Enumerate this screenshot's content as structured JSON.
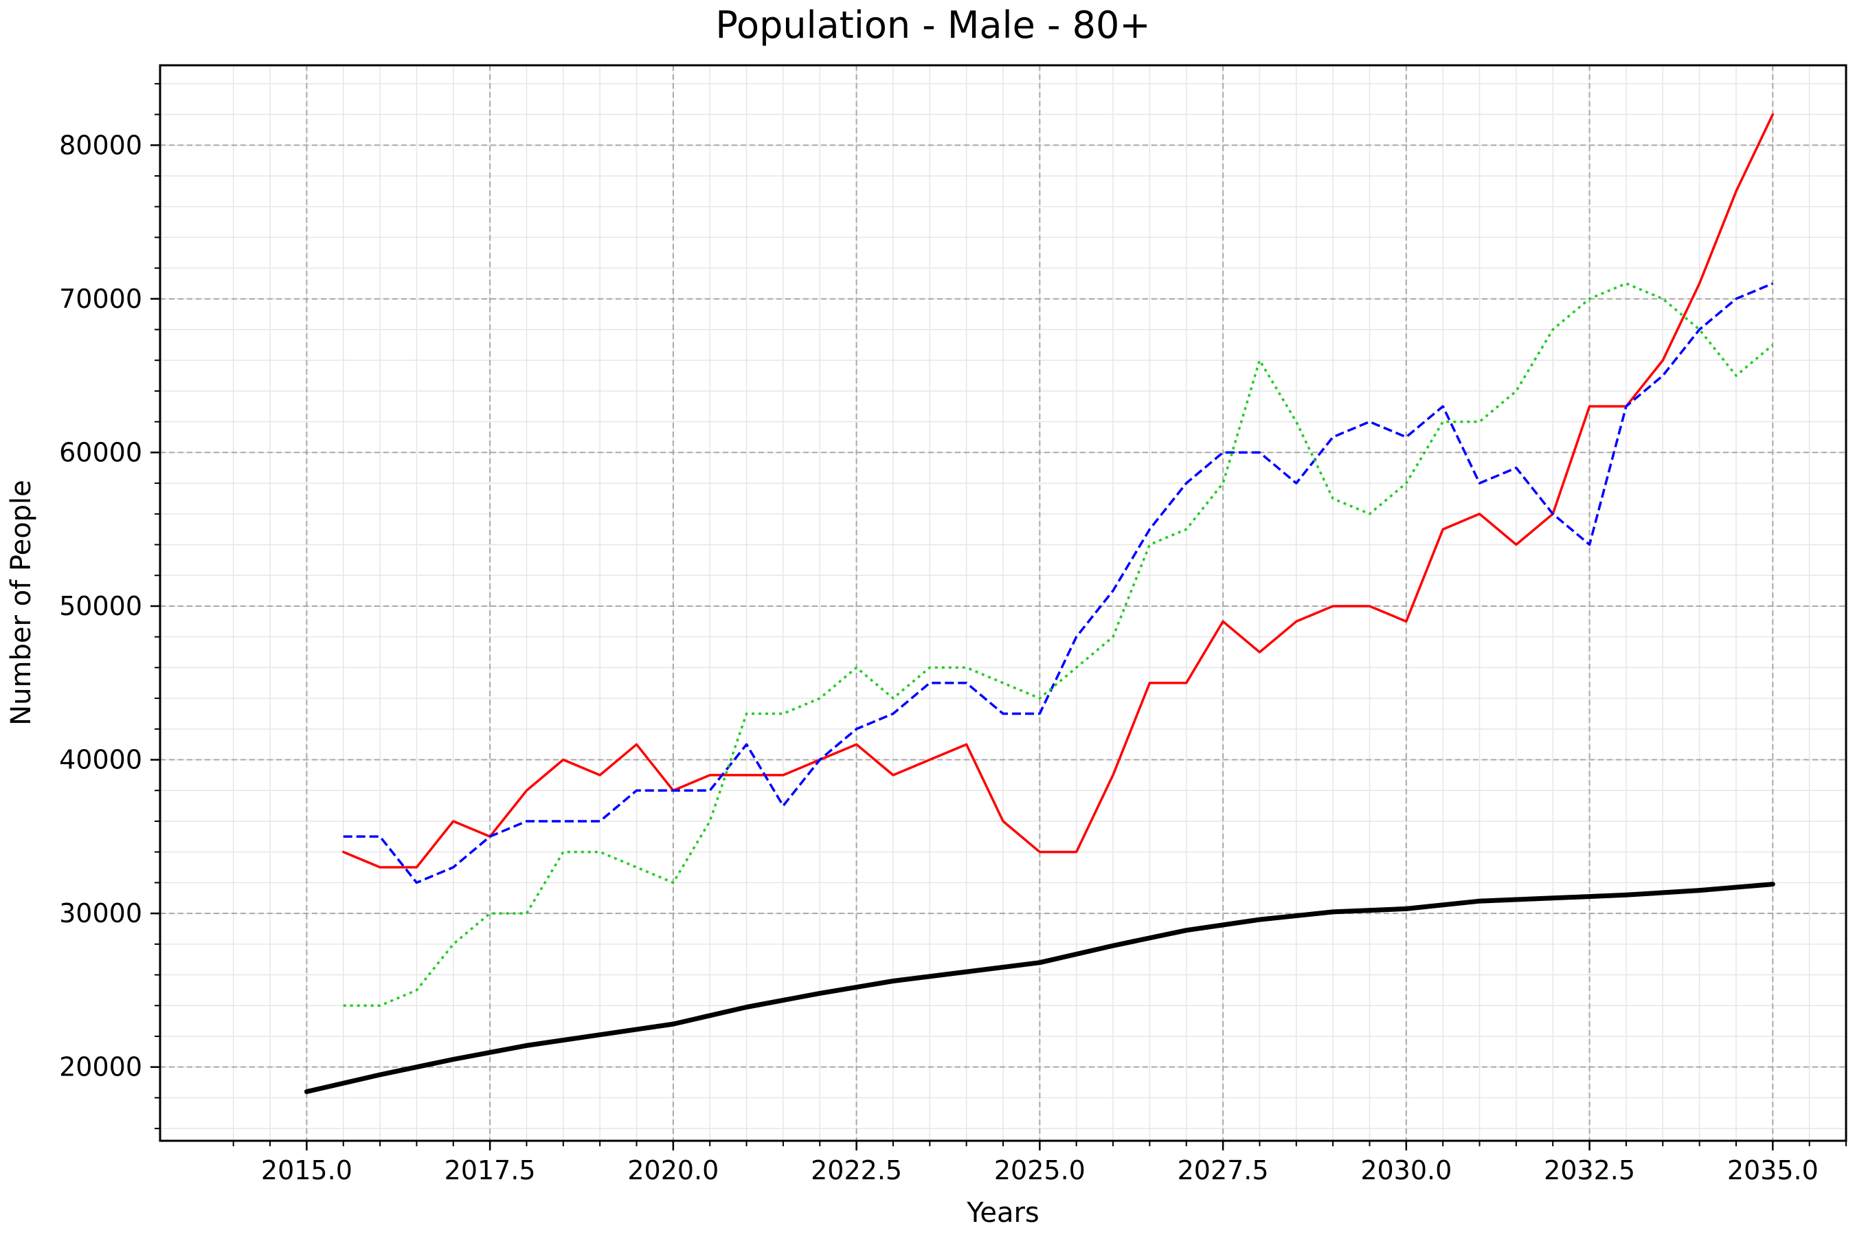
{
  "chart_data": {
    "type": "line",
    "title": "Population - Male - 80+",
    "xlabel": "Years",
    "ylabel": "Number of People",
    "xlim": [
      2013.0,
      2036.0
    ],
    "ylim": [
      15200,
      85200
    ],
    "grid": true,
    "legend": "none",
    "x_ticks": [
      2015.0,
      2017.5,
      2020.0,
      2022.5,
      2025.0,
      2027.5,
      2030.0,
      2032.5,
      2035.0
    ],
    "x_tick_labels": [
      "2015.0",
      "2017.5",
      "2020.0",
      "2022.5",
      "2025.0",
      "2027.5",
      "2030.0",
      "2032.5",
      "2035.0"
    ],
    "y_ticks": [
      20000,
      30000,
      40000,
      50000,
      60000,
      70000,
      80000
    ],
    "y_tick_labels": [
      "20000",
      "30000",
      "40000",
      "50000",
      "60000",
      "70000",
      "80000"
    ],
    "series": [
      {
        "style": "solid-thick",
        "color": "#000000",
        "x": [
          2015,
          2016,
          2017,
          2018,
          2019,
          2020,
          2021,
          2022,
          2023,
          2024,
          2025,
          2026,
          2027,
          2028,
          2029,
          2030,
          2031,
          2032,
          2033,
          2034,
          2035
        ],
        "values": [
          18400,
          19500,
          20500,
          21400,
          22100,
          22800,
          23900,
          24800,
          25600,
          26200,
          26800,
          27900,
          28900,
          29600,
          30100,
          30300,
          30800,
          31000,
          31200,
          31500,
          31900
        ]
      },
      {
        "style": "solid",
        "color": "#ff0000",
        "x": [
          2015.5,
          2016,
          2016.5,
          2017,
          2017.5,
          2018,
          2018.5,
          2019,
          2019.5,
          2020,
          2020.5,
          2021,
          2021.5,
          2022,
          2022.5,
          2023,
          2023.5,
          2024,
          2024.5,
          2025,
          2025.5,
          2026,
          2026.5,
          2027,
          2027.5,
          2028,
          2028.5,
          2029,
          2029.5,
          2030,
          2030.5,
          2031,
          2031.5,
          2032,
          2032.5,
          2033,
          2033.5,
          2034,
          2034.5,
          2035
        ],
        "values": [
          34000,
          33000,
          33000,
          36000,
          35000,
          38000,
          40000,
          39000,
          41000,
          38000,
          39000,
          39000,
          39000,
          40000,
          41000,
          39000,
          40000,
          41000,
          36000,
          34000,
          34000,
          39000,
          45000,
          45000,
          49000,
          47000,
          49000,
          50000,
          50000,
          49000,
          55000,
          56000,
          54000,
          56000,
          63000,
          63000,
          66000,
          71000,
          77000,
          82000
        ]
      },
      {
        "style": "dashed",
        "color": "#0000ff",
        "x": [
          2015.5,
          2016,
          2016.5,
          2017,
          2017.5,
          2018,
          2018.5,
          2019,
          2019.5,
          2020,
          2020.5,
          2021,
          2021.5,
          2022,
          2022.5,
          2023,
          2023.5,
          2024,
          2024.5,
          2025,
          2025.5,
          2026,
          2026.5,
          2027,
          2027.5,
          2028,
          2028.5,
          2029,
          2029.5,
          2030,
          2030.5,
          2031,
          2031.5,
          2032,
          2032.5,
          2033,
          2033.5,
          2034,
          2034.5,
          2035
        ],
        "values": [
          35000,
          35000,
          32000,
          33000,
          35000,
          36000,
          36000,
          36000,
          38000,
          38000,
          38000,
          41000,
          37000,
          40000,
          42000,
          43000,
          45000,
          45000,
          43000,
          43000,
          48000,
          51000,
          55000,
          58000,
          60000,
          60000,
          58000,
          61000,
          62000,
          61000,
          63000,
          58000,
          59000,
          56000,
          54000,
          63000,
          65000,
          68000,
          70000,
          71000
        ]
      },
      {
        "style": "dotted",
        "color": "#22cc22",
        "x": [
          2015.5,
          2016,
          2016.5,
          2017,
          2017.5,
          2018,
          2018.5,
          2019,
          2019.5,
          2020,
          2020.5,
          2021,
          2021.5,
          2022,
          2022.5,
          2023,
          2023.5,
          2024,
          2024.5,
          2025,
          2025.5,
          2026,
          2026.5,
          2027,
          2027.5,
          2028,
          2028.5,
          2029,
          2029.5,
          2030,
          2030.5,
          2031,
          2031.5,
          2032,
          2032.5,
          2033,
          2033.5,
          2034,
          2034.5,
          2035
        ],
        "values": [
          24000,
          24000,
          25000,
          28000,
          30000,
          30000,
          34000,
          34000,
          33000,
          32000,
          36000,
          43000,
          43000,
          44000,
          46000,
          44000,
          46000,
          46000,
          45000,
          44000,
          46000,
          48000,
          54000,
          55000,
          58000,
          66000,
          62000,
          57000,
          56000,
          58000,
          62000,
          62000,
          64000,
          68000,
          70000,
          71000,
          70000,
          68000,
          65000,
          67000
        ]
      }
    ]
  }
}
